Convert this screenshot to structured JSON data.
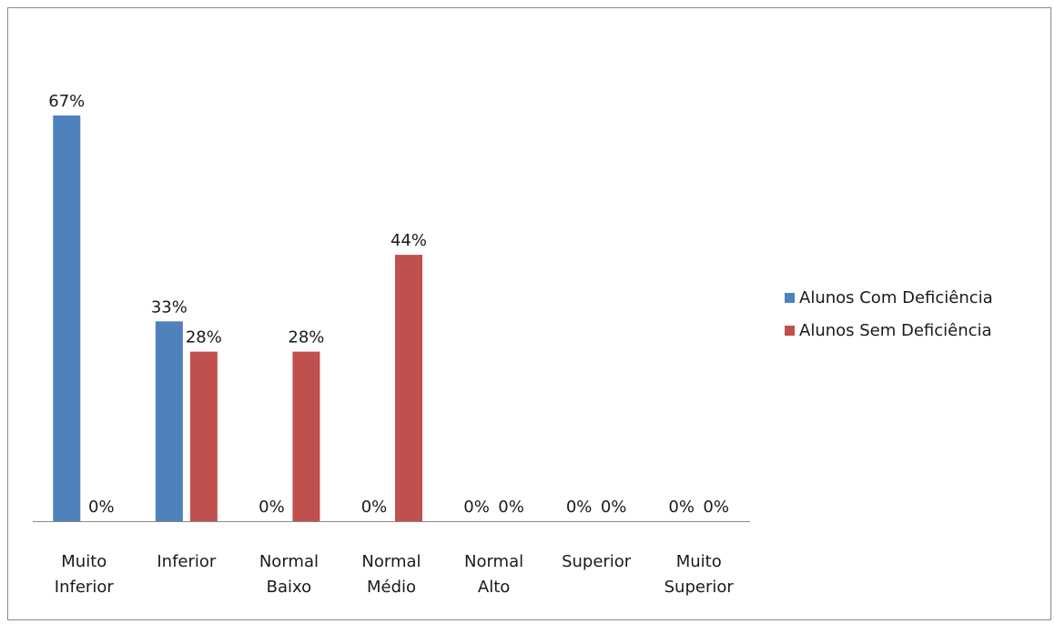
{
  "chart_data": {
    "type": "bar",
    "categories": [
      [
        "Muito",
        "Inferior"
      ],
      [
        "Inferior"
      ],
      [
        "Normal",
        "Baixo"
      ],
      [
        "Normal",
        "Médio"
      ],
      [
        "Normal",
        "Alto"
      ],
      [
        "Superior"
      ],
      [
        "Muito",
        "Superior"
      ]
    ],
    "series": [
      {
        "name": "Alunos Com Deficiência",
        "values": [
          67,
          33,
          0,
          0,
          0,
          0,
          0
        ],
        "color": "#4f81bd"
      },
      {
        "name": "Alunos Sem Deficiência",
        "values": [
          0,
          28,
          28,
          44,
          0,
          0,
          0
        ],
        "color": "#c0504d"
      }
    ],
    "unit": "%",
    "ylim": [
      0,
      67
    ],
    "grid": false,
    "legend_position": "right"
  }
}
